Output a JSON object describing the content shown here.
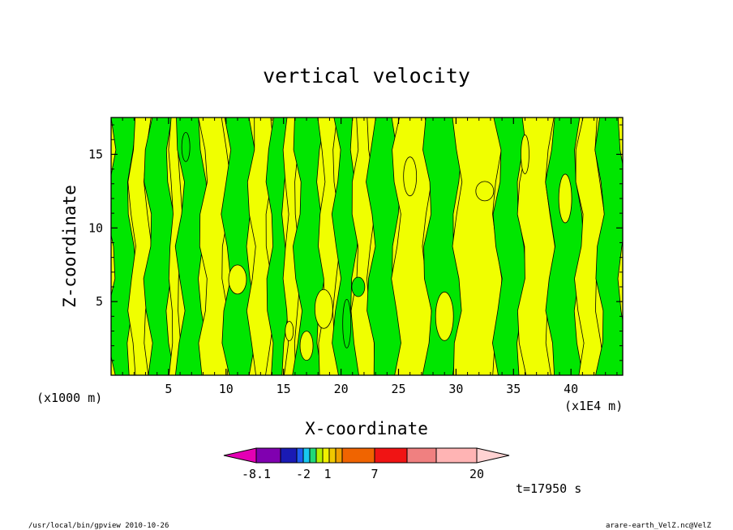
{
  "chart_data": {
    "type": "heatmap",
    "title": "vertical velocity",
    "xlabel": "X-coordinate",
    "ylabel": "Z-coordinate",
    "x_units": "(x1E4 m)",
    "y_units": "(x1000 m)",
    "xlim": [
      0,
      44.5
    ],
    "ylim": [
      0,
      17.5
    ],
    "x_ticks": [
      "5",
      "10",
      "15",
      "20",
      "25",
      "30",
      "35",
      "40"
    ],
    "y_ticks": [
      "5",
      "10",
      "15"
    ],
    "colorbar": {
      "shown_labels": [
        "-8.1",
        "-2",
        "1",
        "7",
        "20"
      ],
      "colors": [
        "#e400b4",
        "#8000b0",
        "#1a1ab4",
        "#1e5cf0",
        "#18c8f0",
        "#20d878",
        "#b4f000",
        "#f0f000",
        "#f0c800",
        "#f0a000",
        "#f06400",
        "#f01414",
        "#f08080",
        "#ffb4b4",
        "#ffd2d2"
      ]
    },
    "field_colors": {
      "green": "#00e600",
      "yellow": "#f0ff00"
    },
    "annotations": {
      "time": "t=17950 s",
      "footer_left": "/usr/local/bin/gpview   2010-10-26",
      "footer_right": "arare-earth_VelZ.nc@VelZ"
    },
    "x_band_edges": [
      0,
      1.8,
      3.2,
      5.2,
      6.0,
      8.0,
      10.0,
      12.2,
      13.8,
      15.2,
      16.2,
      18.3,
      19.6,
      21.2,
      22.6,
      24.8,
      27.5,
      30.1,
      33.6,
      35.7,
      38.2,
      40.7,
      42.5,
      44.5
    ],
    "x_band_values": [
      "green",
      "yellow",
      "green",
      "yellow",
      "green",
      "yellow",
      "green",
      "yellow",
      "green",
      "yellow",
      "green",
      "yellow",
      "green",
      "yellow",
      "green",
      "yellow",
      "green",
      "yellow",
      "green",
      "yellow",
      "green",
      "yellow",
      "green"
    ]
  }
}
